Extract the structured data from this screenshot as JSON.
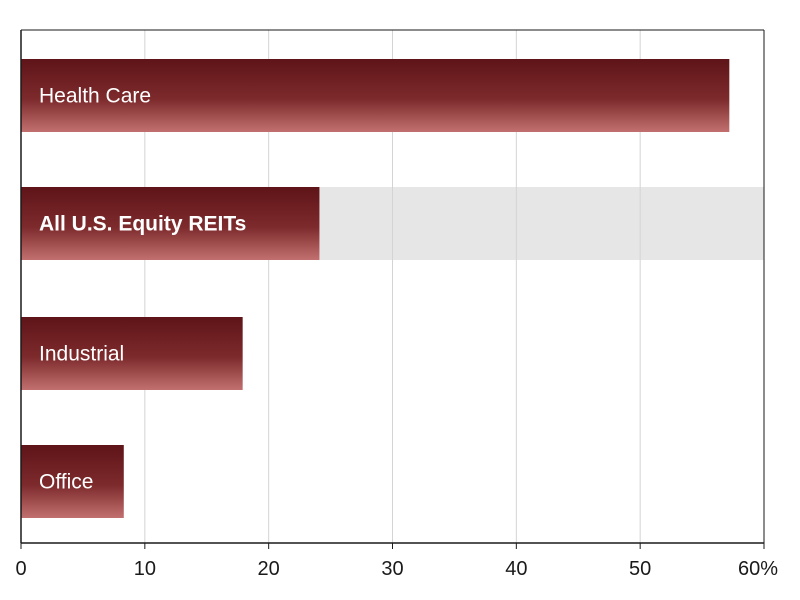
{
  "chart_data": {
    "type": "bar",
    "orientation": "horizontal",
    "categories": [
      "Health Care",
      "All U.S. Equity REITs",
      "Industrial",
      "Office"
    ],
    "values": [
      57.2,
      24.1,
      17.9,
      8.3
    ],
    "highlight_category": "All U.S. Equity REITs",
    "xlim": [
      0,
      60
    ],
    "x_ticks": [
      "0",
      "10",
      "20",
      "30",
      "40",
      "50",
      "60%"
    ],
    "xlabel": "",
    "ylabel": "",
    "title": "",
    "grid": "vertical",
    "legend": "none",
    "colors": {
      "bar_dark": "#5e1418",
      "bar_mid": "#7d2a2c",
      "bar_light": "#c2706f",
      "highlight_band": "#e6e6e7",
      "grid": "#d4d4d4",
      "axis": "#1a1a1a"
    }
  }
}
